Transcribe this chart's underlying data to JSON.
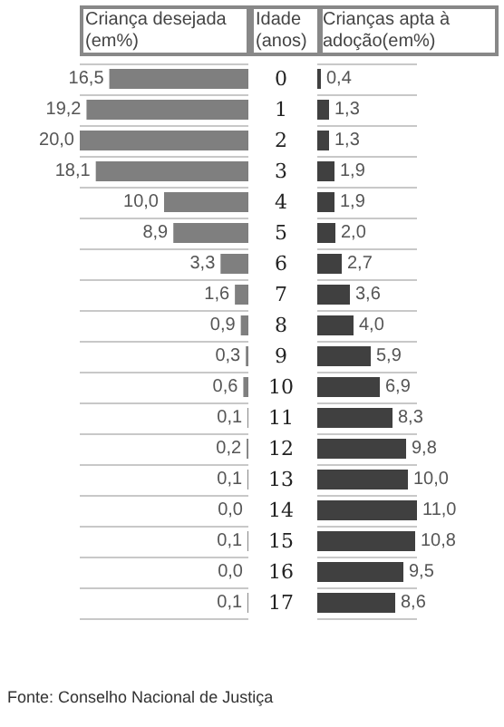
{
  "chart_data": [
    {
      "type": "bar",
      "orientation": "horizontal",
      "categories": [
        "0",
        "1",
        "2",
        "3",
        "4",
        "5",
        "6",
        "7",
        "8",
        "9",
        "10",
        "11",
        "12",
        "13",
        "14",
        "15",
        "16",
        "17"
      ],
      "xlim": [
        20,
        0
      ],
      "series": [
        {
          "name": "Criança desejada (em%)",
          "color": "#7f7f7f",
          "values": [
            16.5,
            19.2,
            20.0,
            18.1,
            10.0,
            8.9,
            3.3,
            1.6,
            0.9,
            0.3,
            0.6,
            0.1,
            0.2,
            0.1,
            0.0,
            0.1,
            0.0,
            0.1
          ],
          "value_labels": [
            "16,5",
            "19,2",
            "20,0",
            "18,1",
            "10,0",
            "8,9",
            "3,3",
            "1,6",
            "0,9",
            "0,3",
            "0,6",
            "0,1",
            "0,2",
            "0,1",
            "0,0",
            "0,1",
            "0,0",
            "0,1"
          ]
        }
      ],
      "tick_labels": false,
      "grid": "y",
      "annotations": [
        "Fonte: Conselho Nacional de Justiça"
      ]
    },
    {
      "type": "bar",
      "orientation": "horizontal",
      "ylabel": "Idade (anos)",
      "categories": [
        "0",
        "1",
        "2",
        "3",
        "4",
        "5",
        "6",
        "7",
        "8",
        "9",
        "10",
        "11",
        "12",
        "13",
        "14",
        "15",
        "16",
        "17"
      ],
      "series": [
        {
          "name": "Crianças apta à adoção(em%)",
          "color": "#404040",
          "values": [
            0.4,
            1.3,
            1.3,
            1.9,
            1.9,
            2.0,
            2.7,
            3.6,
            4.0,
            5.9,
            6.9,
            8.3,
            9.8,
            10.0,
            11.0,
            10.8,
            9.5,
            8.6
          ],
          "value_labels": [
            "0,4",
            "1,3",
            "1,3",
            "1,9",
            "1,9",
            "2,0",
            "2,7",
            "3,6",
            "4,0",
            "5,9",
            "6,9",
            "8,3",
            "9,8",
            "10,0",
            "11,0",
            "10,8",
            "9,5",
            "8,6"
          ]
        }
      ],
      "tick_labels": "y",
      "grid": "y"
    }
  ]
}
